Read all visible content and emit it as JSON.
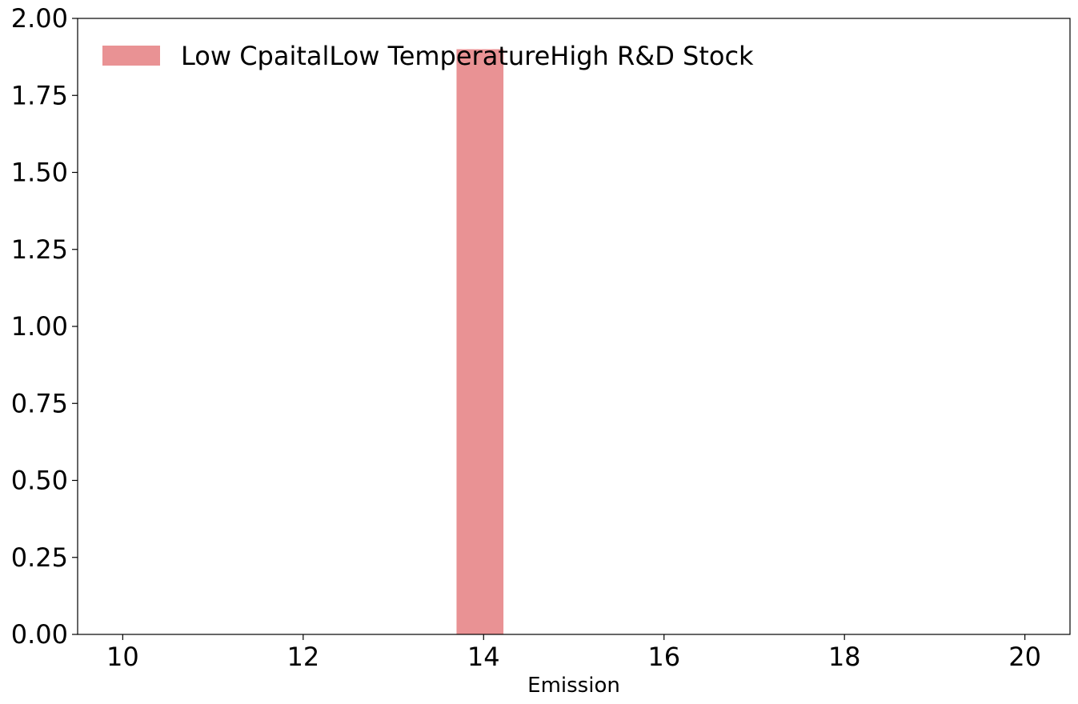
{
  "chart_data": {
    "type": "bar",
    "title": "",
    "xlabel": "Emission",
    "ylabel": "",
    "xlim": [
      9.5,
      20.5
    ],
    "ylim": [
      0,
      2.0
    ],
    "x_ticks": [
      "10",
      "12",
      "14",
      "16",
      "18",
      "20"
    ],
    "y_ticks": [
      "0.00",
      "0.25",
      "0.50",
      "0.75",
      "1.00",
      "1.25",
      "1.50",
      "1.75",
      "2.00"
    ],
    "grid": false,
    "legend_position": "top-left",
    "series": [
      {
        "name": "Low CpaitalLow TemperatureHigh R&D Stock",
        "color": "#e99294",
        "bins": [
          {
            "x0": 13.7,
            "x1": 14.22,
            "value": 1.9
          }
        ]
      }
    ]
  }
}
